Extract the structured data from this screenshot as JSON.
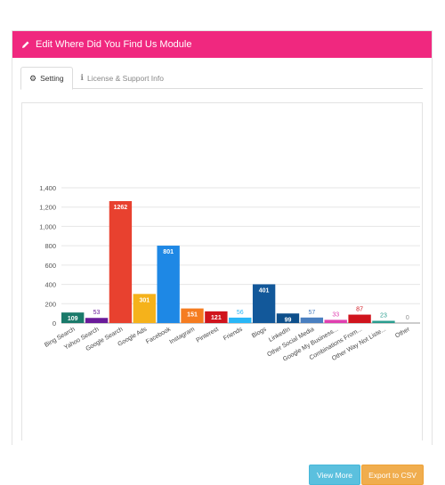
{
  "header": {
    "title": "Edit Where Did You Find Us Module",
    "icon": "pencil-icon",
    "color": "#f0287f"
  },
  "tabs": [
    {
      "label": "Setting",
      "icon": "gear-icon",
      "active": true
    },
    {
      "label": "License & Support Info",
      "icon": "info-icon",
      "active": false
    }
  ],
  "buttons": {
    "view_more": "View More",
    "export_csv": "Export to CSV"
  },
  "chart_data": {
    "type": "bar",
    "title": "",
    "xlabel": "",
    "ylabel": "",
    "ylim": [
      0,
      1400
    ],
    "yticks": [
      "0",
      "200",
      "400",
      "600",
      "800",
      "1,000",
      "1,200",
      "1,400"
    ],
    "yticks_values": [
      0,
      200,
      400,
      600,
      800,
      1000,
      1200,
      1400
    ],
    "grid": true,
    "legend": "none",
    "categories": [
      "Bing Search",
      "Yahoo Search",
      "Google Search",
      "Google Ads",
      "Facebook",
      "Instagram",
      "Pinterest",
      "Friends",
      "Blogs",
      "LinkedIn",
      "Other Social Media",
      "Google My Business...",
      "Combinations From...",
      "Other Way Not Liste...",
      "Other"
    ],
    "values": [
      109,
      53,
      1262,
      301,
      801,
      151,
      121,
      56,
      401,
      99,
      57,
      33,
      87,
      23,
      0
    ],
    "colors": [
      "#1a7a6a",
      "#6a1b9a",
      "#e8412f",
      "#f5b21b",
      "#1e88e5",
      "#f57c20",
      "#d0141d",
      "#29b6f6",
      "#12589a",
      "#0d4f8b",
      "#4a7fc0",
      "#e040b0",
      "#d0141d",
      "#2a9d8f",
      "#8e8e8e"
    ],
    "label_inside": [
      true,
      false,
      true,
      true,
      true,
      true,
      true,
      false,
      true,
      true,
      false,
      false,
      false,
      false,
      false
    ]
  }
}
